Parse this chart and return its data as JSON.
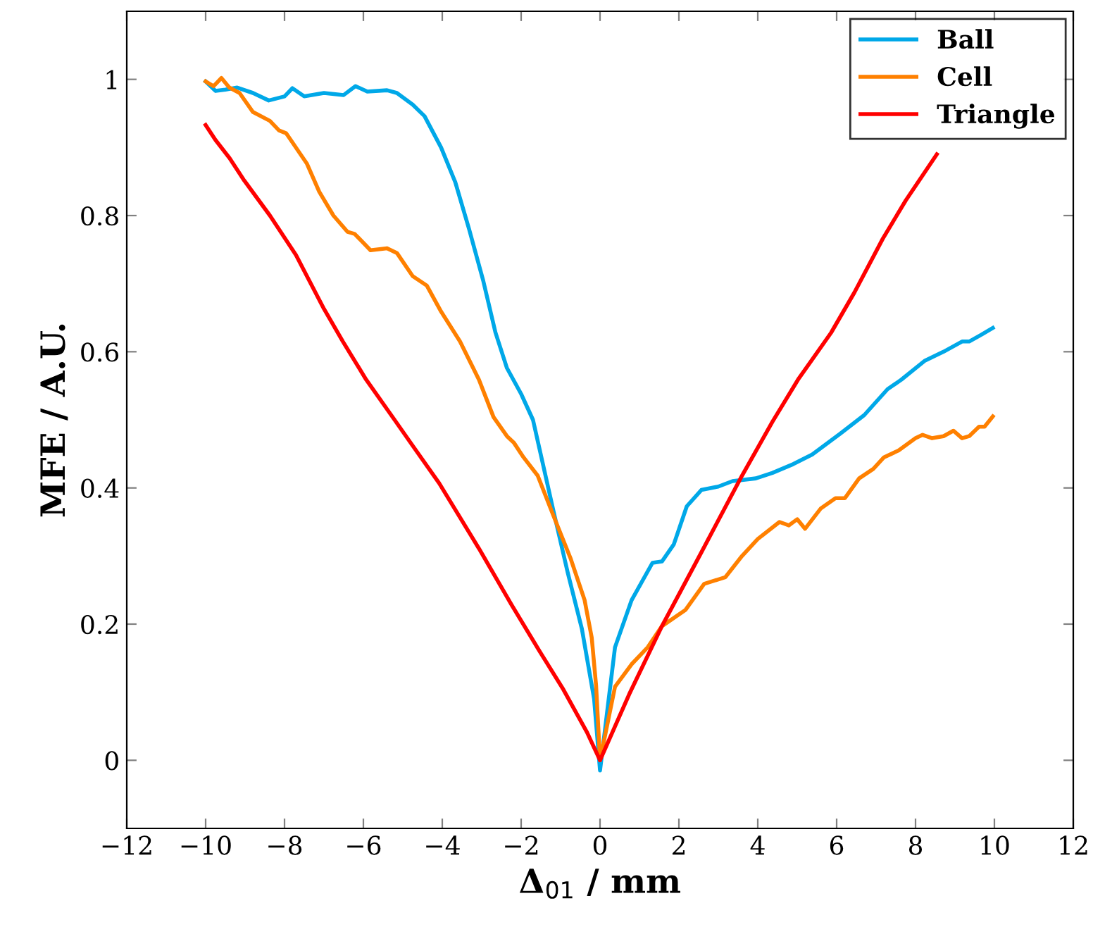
{
  "chart_data": {
    "type": "line",
    "xlabel": "Δ$_{01}$ / mm",
    "ylabel": "MFE / A.U.",
    "xlim": [
      -12,
      12
    ],
    "ylim": [
      -0.1,
      1.1
    ],
    "xticks": [
      -12,
      -10,
      -8,
      -6,
      -4,
      -2,
      0,
      2,
      4,
      6,
      8,
      10,
      12
    ],
    "yticks": [
      0,
      0.2,
      0.4,
      0.6,
      0.8,
      1
    ],
    "grid": false,
    "legend": "top right",
    "marker": "none",
    "line_style": "solid",
    "series": [
      {
        "name": "Ball",
        "color": "#00a8e8",
        "x": [
          -10,
          -9.75,
          -9.5,
          -9.2,
          -8.8,
          -8.4,
          -8.0,
          -7.8,
          -7.5,
          -7,
          -6.5,
          -6.2,
          -5.9,
          -5.4,
          -5.15,
          -4.75,
          -4.45,
          -4.03,
          -3.67,
          -3.32,
          -2.96,
          -2.65,
          -2.36,
          -2,
          -1.7,
          -1.18,
          -0.82,
          -0.46,
          -0.15,
          0,
          0.38,
          0.8,
          1.33,
          1.57,
          1.87,
          2.2,
          2.57,
          3,
          3.36,
          3.95,
          4.37,
          4.9,
          5.38,
          6.1,
          6.7,
          7.29,
          7.64,
          8.24,
          8.71,
          9.18,
          9.36,
          9.67,
          9.96
        ],
        "values": [
          0.997,
          0.983,
          0.985,
          0.988,
          0.98,
          0.969,
          0.975,
          0.987,
          0.975,
          0.98,
          0.977,
          0.99,
          0.982,
          0.984,
          0.98,
          0.963,
          0.946,
          0.9,
          0.849,
          0.78,
          0.704,
          0.628,
          0.576,
          0.538,
          0.5,
          0.366,
          0.276,
          0.193,
          0.09,
          -0.015,
          0.166,
          0.235,
          0.29,
          0.292,
          0.317,
          0.373,
          0.397,
          0.402,
          0.41,
          0.414,
          0.422,
          0.435,
          0.449,
          0.48,
          0.507,
          0.545,
          0.559,
          0.587,
          0.6,
          0.615,
          0.615,
          0.625,
          0.635
        ]
      },
      {
        "name": "Cell",
        "color": "#ff8000",
        "x": [
          -10,
          -9.8,
          -9.6,
          -9.4,
          -9.14,
          -8.8,
          -8.37,
          -8.14,
          -7.96,
          -7.43,
          -7.12,
          -6.76,
          -6.4,
          -6.22,
          -5.82,
          -5.4,
          -5.15,
          -4.75,
          -4.39,
          -4.03,
          -3.55,
          -3.07,
          -2.7,
          -2.36,
          -2.18,
          -1.94,
          -1.58,
          -1.18,
          -0.75,
          -0.39,
          -0.21,
          -0.1,
          0,
          0.38,
          0.8,
          1.21,
          1.57,
          2.17,
          2.64,
          3.18,
          3.6,
          4,
          4.55,
          4.79,
          5,
          5.2,
          5.6,
          5.97,
          6.21,
          6.57,
          6.93,
          7.2,
          7.57,
          8,
          8.18,
          8.42,
          8.71,
          8.96,
          9.18,
          9.36,
          9.61,
          9.75,
          9.96
        ],
        "values": [
          0.997,
          0.99,
          1.002,
          0.988,
          0.98,
          0.952,
          0.939,
          0.925,
          0.921,
          0.876,
          0.835,
          0.8,
          0.776,
          0.773,
          0.749,
          0.752,
          0.745,
          0.711,
          0.697,
          0.659,
          0.615,
          0.559,
          0.504,
          0.476,
          0.466,
          0.445,
          0.418,
          0.359,
          0.297,
          0.235,
          0.18,
          0.11,
          0,
          0.108,
          0.141,
          0.166,
          0.197,
          0.221,
          0.259,
          0.269,
          0.3,
          0.325,
          0.35,
          0.345,
          0.354,
          0.34,
          0.37,
          0.385,
          0.385,
          0.414,
          0.428,
          0.445,
          0.455,
          0.473,
          0.478,
          0.473,
          0.476,
          0.484,
          0.473,
          0.476,
          0.49,
          0.49,
          0.505
        ]
      },
      {
        "name": "Triangle",
        "color": "#ff0000",
        "x": [
          -10,
          -9.75,
          -9.39,
          -9.04,
          -8.37,
          -7.71,
          -7,
          -6.52,
          -5.93,
          -5.21,
          -4.75,
          -4.08,
          -3.07,
          -2.24,
          -1.52,
          -0.93,
          -0.33,
          0,
          0.74,
          1.57,
          2.52,
          3.6,
          4.37,
          5.02,
          5.86,
          6.45,
          7.17,
          7.75,
          8.54
        ],
        "values": [
          0.933,
          0.911,
          0.884,
          0.853,
          0.8,
          0.742,
          0.663,
          0.615,
          0.559,
          0.5,
          0.462,
          0.407,
          0.311,
          0.228,
          0.159,
          0.104,
          0.041,
          0,
          0.097,
          0.197,
          0.3,
          0.418,
          0.497,
          0.559,
          0.628,
          0.687,
          0.766,
          0.822,
          0.89
        ]
      }
    ]
  }
}
